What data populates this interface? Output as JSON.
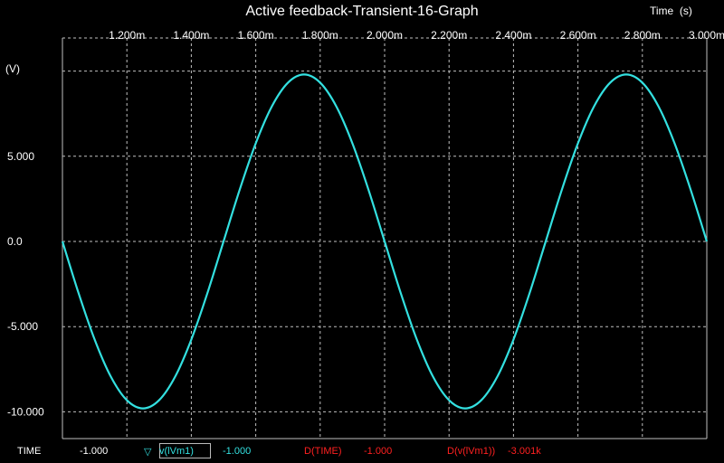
{
  "chart_data": {
    "type": "line",
    "title": "Active feedback-Transient-16-Graph",
    "xlabel": "Time  (s)",
    "ylabel": "(V)",
    "xlim": [
      1.0,
      3.0
    ],
    "ylim": [
      -10.8,
      10.8
    ],
    "x_unit": "ms",
    "x_ticks": [
      1.2,
      1.4,
      1.6,
      1.8,
      2.0,
      2.2,
      2.4,
      2.6,
      2.8,
      3.0
    ],
    "x_tick_labels": [
      "1.200m",
      "1.400m",
      "1.600m",
      "1.800m",
      "2.000m",
      "2.200m",
      "2.400m",
      "2.600m",
      "2.800m",
      "3.000m"
    ],
    "y_ticks": [
      -10,
      -5,
      0,
      5
    ],
    "y_tick_labels": [
      "-10.000",
      "-5.000",
      "0.0",
      "5.000"
    ],
    "grid": true,
    "background": "#000000",
    "series": [
      {
        "name": "v(lVm1)",
        "color": "#33e0e0",
        "x": [
          1.0,
          1.05,
          1.1,
          1.15,
          1.2,
          1.25,
          1.3,
          1.35,
          1.4,
          1.45,
          1.5,
          1.55,
          1.6,
          1.65,
          1.7,
          1.75,
          1.8,
          1.85,
          1.9,
          1.95,
          2.0,
          2.05,
          2.1,
          2.15,
          2.2,
          2.25,
          2.3,
          2.35,
          2.4,
          2.45,
          2.5,
          2.55,
          2.6,
          2.65,
          2.7,
          2.75,
          2.8,
          2.85,
          2.9,
          2.95,
          3.0
        ],
        "values": [
          0.0,
          -3.03,
          -5.76,
          -7.93,
          -9.32,
          -9.8,
          -9.32,
          -7.93,
          -5.76,
          -3.03,
          0.0,
          3.03,
          5.76,
          7.93,
          9.32,
          9.8,
          9.32,
          7.93,
          5.76,
          3.03,
          0.0,
          -3.03,
          -5.76,
          -7.93,
          -9.32,
          -9.8,
          -9.32,
          -7.93,
          -5.76,
          -3.03,
          0.0,
          3.03,
          5.76,
          7.93,
          9.32,
          9.8,
          9.32,
          7.93,
          5.76,
          3.03,
          0.0
        ]
      }
    ]
  },
  "status_bar": {
    "time_label": "TIME",
    "time_value": "-1.000",
    "marker_glyph": "▽",
    "wave_label": "v(lVm1)",
    "wave_value": "-1.000",
    "dtime_label": "D(TIME)",
    "dtime_value": "-1.000",
    "dwave_label": "D(v(lVm1))",
    "dwave_value": "-3.001k"
  },
  "colors": {
    "trace": "#33e0e0",
    "grid": "#bfbfbf",
    "delta_text": "#ff2020",
    "text": "#ffffff"
  }
}
